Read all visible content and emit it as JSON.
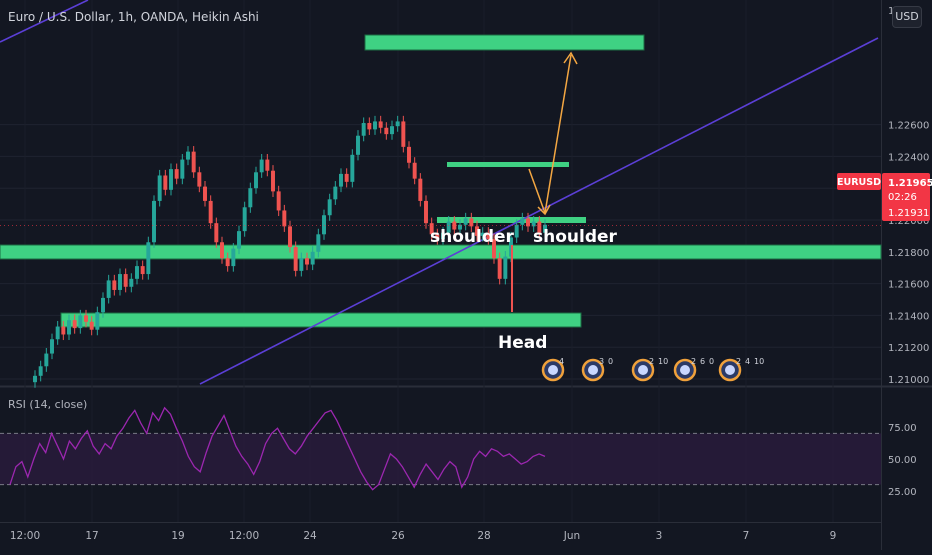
{
  "header": {
    "title": "Euro / U.S. Dollar, 1h, OANDA, Heikin Ashi",
    "currency_button": "USD"
  },
  "price_badge": {
    "symbol": "EURUSD",
    "last": "1.21965",
    "countdown": "02:26",
    "prev_close": "1.21931"
  },
  "colors": {
    "background": "#131722",
    "up": "#26a69a",
    "down": "#ef5350",
    "zone": "#3fd183",
    "trendline": "#5b3fd6",
    "arrow": "#f4a742",
    "rsi_line": "#9c27b0",
    "rsi_band": "#2a1b3d",
    "badge": "#f23645"
  },
  "chart_data": [
    {
      "type": "candlestick",
      "title": "Euro / U.S. Dollar, 1h, OANDA, Heikin Ashi",
      "x_ticks": [
        "12:00",
        "17",
        "19",
        "12:00",
        "24",
        "26",
        "28",
        "Jun",
        "3",
        "7",
        "9"
      ],
      "y_ticks": [
        "1.21000",
        "1.21200",
        "1.21400",
        "1.21600",
        "1.21800",
        "1.22000",
        "1.22200",
        "1.22400",
        "1.22600"
      ],
      "ylim": [
        1.2095,
        1.2275
      ],
      "series": [
        {
          "close": [
            1.2102,
            1.2108,
            1.2116,
            1.2125,
            1.2133,
            1.2128,
            1.2137,
            1.2132,
            1.214,
            1.2136,
            1.2131,
            1.2142,
            1.2151,
            1.2162,
            1.2156,
            1.2166,
            1.2158,
            1.2163,
            1.2171,
            1.2166,
            1.2186,
            1.2212,
            1.2228,
            1.2219,
            1.2232,
            1.2226,
            1.2238,
            1.2243,
            1.223,
            1.2221,
            1.2212,
            1.2198,
            1.2186,
            1.2176,
            1.2171,
            1.2182,
            1.2193,
            1.2208,
            1.222,
            1.223,
            1.2238,
            1.2231,
            1.2218,
            1.2206,
            1.2196,
            1.2183,
            1.2168,
            1.2176,
            1.2172,
            1.218,
            1.2191,
            1.2203,
            1.2213,
            1.2221,
            1.2229,
            1.2224,
            1.2241,
            1.2253,
            1.2261,
            1.2257,
            1.2262,
            1.2258,
            1.2254,
            1.2259,
            1.2262,
            1.2246,
            1.2236,
            1.2226,
            1.2212,
            1.2198,
            1.2191,
            1.2188,
            1.2192,
            1.2199,
            1.2194,
            1.2197,
            1.2201,
            1.2196,
            1.219,
            1.2192,
            1.2188,
            1.2176,
            1.2163,
            1.2177,
            1.2189,
            1.2197,
            1.2201,
            1.2196,
            1.2199,
            1.2192,
            1.2197
          ]
        }
      ],
      "annotations": [
        "shoulder",
        "shoulder",
        "Head"
      ],
      "event_badges": [
        "4",
        "3",
        "0",
        "2",
        "10",
        "2",
        "6",
        "0",
        "2",
        "4",
        "10"
      ]
    },
    {
      "type": "line",
      "title": "RSI (14, close)",
      "y_ticks": [
        "25.00",
        "50.00",
        "75.00"
      ],
      "ylim": [
        15,
        95
      ],
      "band": [
        30,
        70
      ],
      "series": [
        {
          "name": "RSI (14, close)",
          "values": [
            30,
            44,
            48,
            36,
            50,
            62,
            55,
            70,
            60,
            50,
            64,
            58,
            66,
            72,
            60,
            54,
            62,
            58,
            68,
            74,
            82,
            88,
            78,
            70,
            86,
            80,
            90,
            85,
            74,
            64,
            52,
            44,
            40,
            55,
            68,
            76,
            84,
            72,
            60,
            52,
            46,
            38,
            48,
            62,
            70,
            74,
            66,
            58,
            54,
            60,
            68,
            74,
            80,
            86,
            88,
            80,
            70,
            60,
            50,
            40,
            32,
            26,
            30,
            42,
            54,
            50,
            44,
            36,
            28,
            38,
            46,
            40,
            34,
            42,
            48,
            44,
            28,
            36,
            50,
            56,
            52,
            58,
            56,
            52,
            54,
            50,
            46,
            48,
            52,
            54,
            52
          ]
        }
      ]
    }
  ]
}
